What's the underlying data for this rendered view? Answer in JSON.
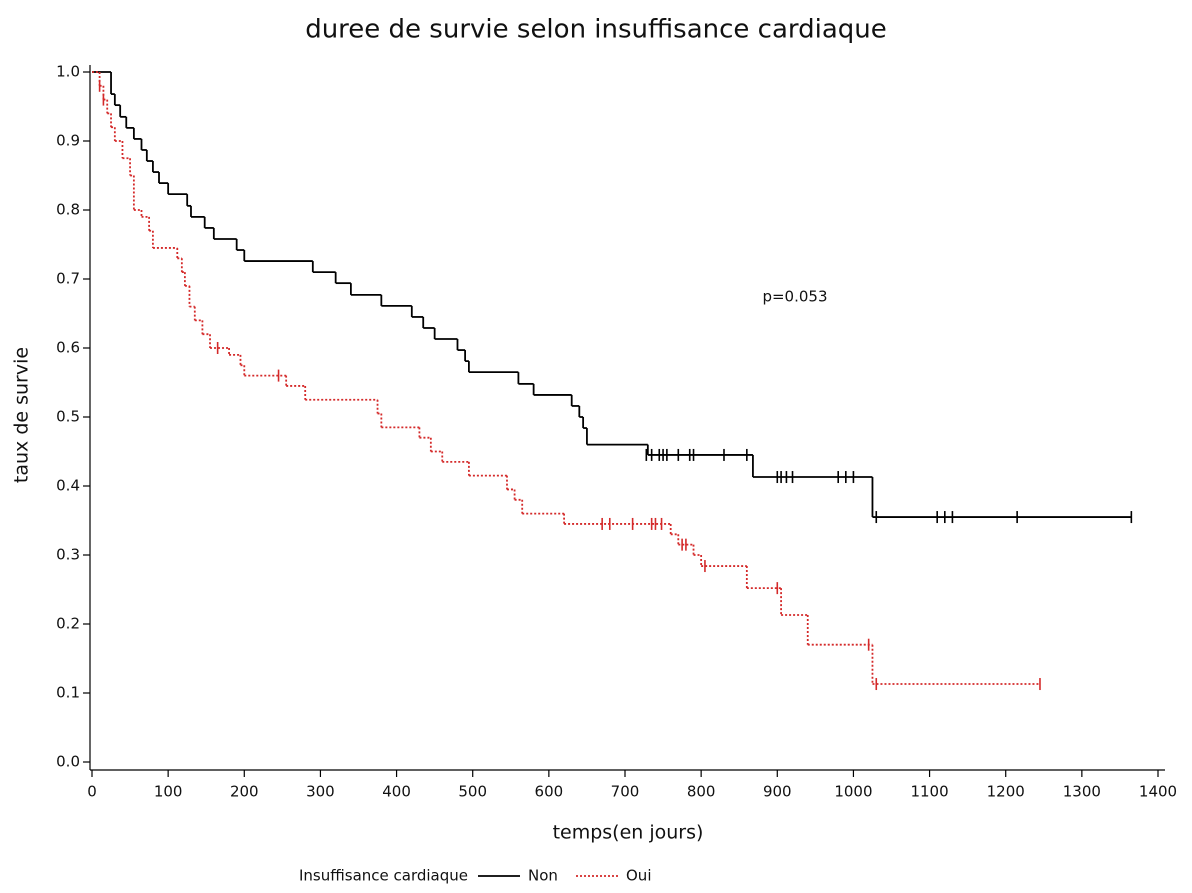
{
  "chart_data": {
    "type": "step",
    "title": "duree de survie selon insuffisance cardiaque",
    "xlabel": "temps(en jours)",
    "ylabel": "taux de survie",
    "annotation": "p=0.053",
    "legend_title": "Insuffisance cardiaque",
    "xlim": [
      0,
      1400
    ],
    "xticks": [
      0,
      100,
      200,
      300,
      400,
      500,
      600,
      700,
      800,
      900,
      1000,
      1100,
      1200,
      1300,
      1400
    ],
    "ylim": [
      0,
      1
    ],
    "yticks": [
      {
        "value": 0,
        "label": "0.0"
      },
      0.1,
      0.2,
      0.3,
      0.4,
      0.5,
      0.6,
      0.7,
      0.8,
      0.9,
      {
        "value": 1,
        "label": "1.0"
      }
    ],
    "series": [
      {
        "name": "Non",
        "color": "#000000",
        "line_style": "solid",
        "x": [
          0,
          25,
          30,
          37,
          45,
          55,
          65,
          72,
          80,
          88,
          100,
          125,
          130,
          148,
          160,
          190,
          200,
          290,
          320,
          340,
          380,
          420,
          435,
          450,
          480,
          490,
          495,
          560,
          580,
          630,
          640,
          645,
          650,
          730,
          868,
          1025,
          1365
        ],
        "values": [
          1.0,
          0.968,
          0.952,
          0.935,
          0.919,
          0.903,
          0.887,
          0.871,
          0.855,
          0.839,
          0.823,
          0.806,
          0.79,
          0.774,
          0.758,
          0.742,
          0.726,
          0.71,
          0.694,
          0.677,
          0.661,
          0.645,
          0.629,
          0.613,
          0.597,
          0.581,
          0.565,
          0.548,
          0.532,
          0.516,
          0.5,
          0.484,
          0.46,
          0.445,
          0.413,
          0.355,
          0.355
        ],
        "censor_x": [
          728,
          735,
          745,
          750,
          755,
          770,
          785,
          790,
          830,
          860,
          900,
          905,
          912,
          920,
          980,
          990,
          1000,
          1030,
          1110,
          1120,
          1130,
          1215,
          1365
        ],
        "censor_values": [
          0.445,
          0.445,
          0.445,
          0.445,
          0.445,
          0.445,
          0.445,
          0.445,
          0.445,
          0.445,
          0.413,
          0.413,
          0.413,
          0.413,
          0.413,
          0.413,
          0.413,
          0.355,
          0.355,
          0.355,
          0.355,
          0.355,
          0.355
        ]
      },
      {
        "name": "Oui",
        "color": "#d42a2a",
        "line_style": "dotted",
        "x": [
          0,
          10,
          15,
          20,
          25,
          30,
          40,
          50,
          55,
          65,
          75,
          80,
          112,
          118,
          122,
          128,
          135,
          145,
          155,
          180,
          195,
          200,
          255,
          280,
          375,
          380,
          430,
          445,
          460,
          495,
          545,
          555,
          565,
          620,
          760,
          770,
          790,
          800,
          860,
          905,
          940,
          1025,
          1245
        ],
        "values": [
          1.0,
          0.98,
          0.96,
          0.94,
          0.92,
          0.9,
          0.875,
          0.85,
          0.8,
          0.79,
          0.77,
          0.745,
          0.73,
          0.71,
          0.69,
          0.66,
          0.64,
          0.62,
          0.6,
          0.59,
          0.575,
          0.56,
          0.545,
          0.525,
          0.505,
          0.485,
          0.47,
          0.45,
          0.435,
          0.415,
          0.395,
          0.38,
          0.36,
          0.345,
          0.33,
          0.315,
          0.3,
          0.284,
          0.252,
          0.213,
          0.17,
          0.113,
          0.113
        ],
        "censor_x": [
          10,
          15,
          165,
          245,
          670,
          680,
          710,
          735,
          740,
          748,
          775,
          780,
          805,
          900,
          1020,
          1030,
          1245
        ],
        "censor_values": [
          0.98,
          0.96,
          0.6,
          0.56,
          0.345,
          0.345,
          0.345,
          0.345,
          0.345,
          0.345,
          0.315,
          0.315,
          0.284,
          0.252,
          0.17,
          0.113,
          0.113
        ]
      }
    ]
  }
}
